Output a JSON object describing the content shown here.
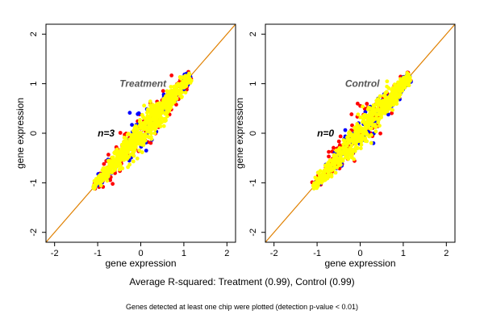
{
  "footer": "Average R-squared: Treatment (0.99), Control (0.99)",
  "note": "Genes detected at least one chip were plotted (detection p-value < 0.01)",
  "colors": {
    "red": "#ff0000",
    "blue": "#0000ff",
    "yellow": "#ffff00",
    "diagonal": "#e08000",
    "diagonal_dark": "#800000",
    "background": "#ffffff",
    "axis": "#000000"
  },
  "chart_data": [
    {
      "type": "scatter",
      "title": "Treatment",
      "annotation": "n=3",
      "xlabel": "gene expression",
      "ylabel": "gene expression",
      "xlim": [
        -2.2,
        2.2
      ],
      "ylim": [
        -2.2,
        2.2
      ],
      "x_ticks": [
        -2,
        -1,
        0,
        1,
        2
      ],
      "y_ticks": [
        -2,
        -1,
        0,
        1,
        2
      ],
      "grid": false,
      "reference_line": {
        "slope": 1,
        "intercept": 0
      },
      "point_cloud": {
        "x_range": [
          -1.1,
          1.15
        ],
        "spread": 0.15,
        "colors": [
          "red",
          "blue",
          "yellow"
        ]
      }
    },
    {
      "type": "scatter",
      "title": "Control",
      "annotation": "n=0",
      "xlabel": "gene expression",
      "ylabel": "gene expression",
      "xlim": [
        -2.2,
        2.2
      ],
      "ylim": [
        -2.2,
        2.2
      ],
      "x_ticks": [
        -2,
        -1,
        0,
        1,
        2
      ],
      "y_ticks": [
        -2,
        -1,
        0,
        1,
        2
      ],
      "grid": false,
      "reference_line": {
        "slope": 1,
        "intercept": 0
      },
      "point_cloud": {
        "x_range": [
          -1.1,
          1.15
        ],
        "spread": 0.15,
        "colors": [
          "red",
          "blue",
          "yellow"
        ]
      }
    }
  ]
}
